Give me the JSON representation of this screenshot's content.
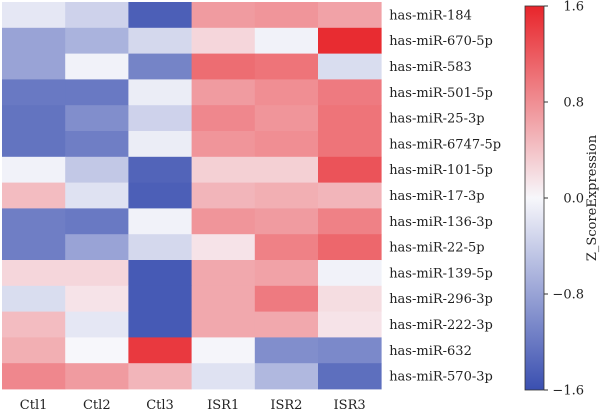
{
  "chart_data": {
    "type": "heatmap",
    "columns": [
      "Ctl1",
      "Ctl2",
      "Ctl3",
      "ISR1",
      "ISR2",
      "ISR3"
    ],
    "rows": [
      "has-miR-184",
      "has-miR-670-5p",
      "has-miR-583",
      "has-miR-501-5p",
      "has-miR-25-3p",
      "has-miR-6747-5p",
      "has-miR-101-5p",
      "has-miR-17-3p",
      "has-miR-136-3p",
      "has-miR-22-5p",
      "has-miR-139-5p",
      "has-miR-296-3p",
      "has-miR-222-3p",
      "has-miR-632",
      "has-miR-570-3p"
    ],
    "values": [
      [
        -0.15,
        -0.35,
        -1.45,
        0.7,
        0.75,
        0.65
      ],
      [
        -0.8,
        -0.65,
        -0.3,
        0.25,
        -0.05,
        1.55
      ],
      [
        -0.8,
        -0.05,
        -1.1,
        1.05,
        1.0,
        -0.25
      ],
      [
        -1.2,
        -1.2,
        -0.1,
        0.7,
        0.8,
        0.95
      ],
      [
        -1.25,
        -1.0,
        -0.35,
        0.85,
        0.75,
        1.0
      ],
      [
        -1.25,
        -1.15,
        -0.1,
        0.75,
        0.8,
        1.0
      ],
      [
        -0.05,
        -0.45,
        -1.4,
        0.3,
        0.3,
        1.25
      ],
      [
        0.45,
        -0.2,
        -1.45,
        0.5,
        0.55,
        0.5
      ],
      [
        -1.15,
        -1.2,
        -0.05,
        0.75,
        0.7,
        0.9
      ],
      [
        -1.15,
        -0.8,
        -0.3,
        0.15,
        0.9,
        1.1
      ],
      [
        0.25,
        0.25,
        -1.5,
        0.6,
        0.65,
        -0.05
      ],
      [
        -0.25,
        0.15,
        -1.5,
        0.6,
        0.95,
        0.2
      ],
      [
        0.45,
        -0.15,
        -1.5,
        0.6,
        0.6,
        0.15
      ],
      [
        0.55,
        0.0,
        1.45,
        -0.02,
        -1.0,
        -1.05
      ],
      [
        0.85,
        0.7,
        0.5,
        -0.2,
        -0.6,
        -1.3
      ]
    ],
    "colorbar": {
      "label": "Z_ScoreExpression",
      "ticks": [
        "1.6",
        "0.8",
        "0.0",
        "−0.8",
        "−1.6"
      ],
      "range": [
        -1.6,
        1.6
      ],
      "low_color": "#3a4fb0",
      "mid_color": "#f7f7fb",
      "high_color": "#e8252b"
    }
  }
}
